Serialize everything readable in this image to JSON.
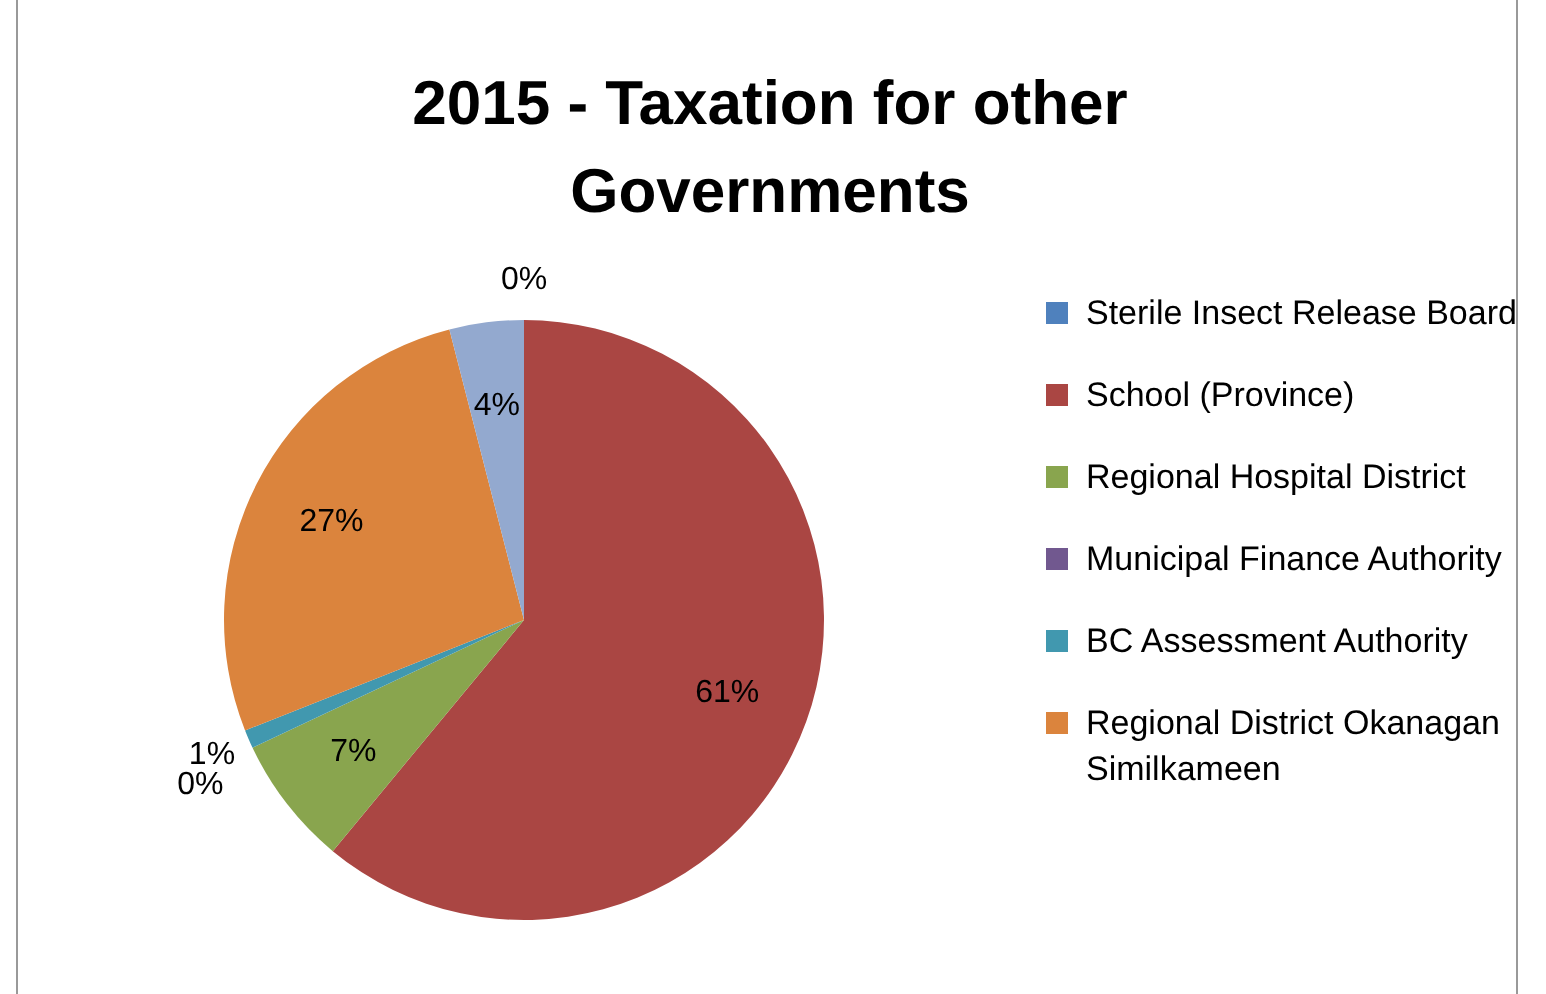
{
  "chart_data": {
    "type": "pie",
    "title": "2015 - Taxation for other Governments",
    "categories": [
      "Sterile Insect Release Board",
      "School (Province)",
      "Regional Hospital District",
      "Municipal Finance Authority",
      "BC Assessment Authority",
      "Regional District Okanagan Similkameen",
      null
    ],
    "values": [
      0,
      61,
      7,
      0,
      1,
      27,
      4
    ],
    "colors": [
      "#4f81bd",
      "#aa4643",
      "#89a54e",
      "#71588f",
      "#4198af",
      "#db843d",
      "#93a9cf"
    ],
    "value_labels": [
      "0%",
      "61%",
      "7%",
      "0%",
      "1%",
      "27%",
      "4%"
    ],
    "legend": "right"
  }
}
